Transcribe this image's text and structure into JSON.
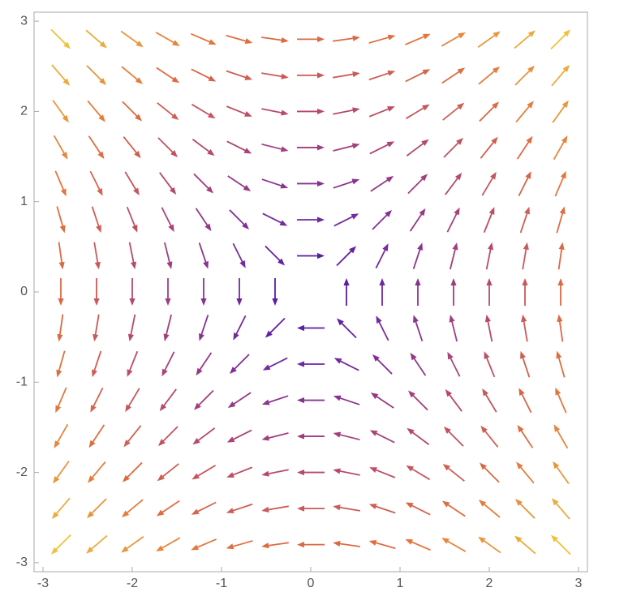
{
  "chart_data": {
    "type": "vector_field",
    "x": [
      -2.8,
      -2.4,
      -2,
      -1.6,
      -1.2,
      -0.8,
      -0.4,
      0,
      0.4,
      0.8,
      1.2,
      1.6,
      2,
      2.4,
      2.8
    ],
    "y": [
      -2.8,
      -2.4,
      -2,
      -1.6,
      -1.2,
      -0.8,
      -0.4,
      0,
      0.4,
      0.8,
      1.2,
      1.6,
      2,
      2.4,
      2.8
    ],
    "u": [
      [
        -2.8,
        -2.8,
        -2.8,
        -2.8,
        -2.8,
        -2.8,
        -2.8,
        -2.8,
        -2.8,
        -2.8,
        -2.8,
        -2.8,
        -2.8,
        -2.8,
        -2.8
      ],
      [
        -2.4,
        -2.4,
        -2.4,
        -2.4,
        -2.4,
        -2.4,
        -2.4,
        -2.4,
        -2.4,
        -2.4,
        -2.4,
        -2.4,
        -2.4,
        -2.4,
        -2.4
      ],
      [
        -2,
        -2,
        -2,
        -2,
        -2,
        -2,
        -2,
        -2,
        -2,
        -2,
        -2,
        -2,
        -2,
        -2,
        -2
      ],
      [
        -1.6,
        -1.6,
        -1.6,
        -1.6,
        -1.6,
        -1.6,
        -1.6,
        -1.6,
        -1.6,
        -1.6,
        -1.6,
        -1.6,
        -1.6,
        -1.6,
        -1.6
      ],
      [
        -1.2,
        -1.2,
        -1.2,
        -1.2,
        -1.2,
        -1.2,
        -1.2,
        -1.2,
        -1.2,
        -1.2,
        -1.2,
        -1.2,
        -1.2,
        -1.2,
        -1.2
      ],
      [
        -0.8,
        -0.8,
        -0.8,
        -0.8,
        -0.8,
        -0.8,
        -0.8,
        -0.8,
        -0.8,
        -0.8,
        -0.8,
        -0.8,
        -0.8,
        -0.8,
        -0.8
      ],
      [
        -0.4,
        -0.4,
        -0.4,
        -0.4,
        -0.4,
        -0.4,
        -0.4,
        -0.4,
        -0.4,
        -0.4,
        -0.4,
        -0.4,
        -0.4,
        -0.4,
        -0.4
      ],
      [
        0,
        0,
        0,
        0,
        0,
        0,
        0,
        0,
        0,
        0,
        0,
        0,
        0,
        0,
        0
      ],
      [
        0.4,
        0.4,
        0.4,
        0.4,
        0.4,
        0.4,
        0.4,
        0.4,
        0.4,
        0.4,
        0.4,
        0.4,
        0.4,
        0.4,
        0.4
      ],
      [
        0.8,
        0.8,
        0.8,
        0.8,
        0.8,
        0.8,
        0.8,
        0.8,
        0.8,
        0.8,
        0.8,
        0.8,
        0.8,
        0.8,
        0.8
      ],
      [
        1.2,
        1.2,
        1.2,
        1.2,
        1.2,
        1.2,
        1.2,
        1.2,
        1.2,
        1.2,
        1.2,
        1.2,
        1.2,
        1.2,
        1.2
      ],
      [
        1.6,
        1.6,
        1.6,
        1.6,
        1.6,
        1.6,
        1.6,
        1.6,
        1.6,
        1.6,
        1.6,
        1.6,
        1.6,
        1.6,
        1.6
      ],
      [
        2,
        2,
        2,
        2,
        2,
        2,
        2,
        2,
        2,
        2,
        2,
        2,
        2,
        2,
        2
      ],
      [
        2.4,
        2.4,
        2.4,
        2.4,
        2.4,
        2.4,
        2.4,
        2.4,
        2.4,
        2.4,
        2.4,
        2.4,
        2.4,
        2.4,
        2.4
      ],
      [
        2.8,
        2.8,
        2.8,
        2.8,
        2.8,
        2.8,
        2.8,
        2.8,
        2.8,
        2.8,
        2.8,
        2.8,
        2.8,
        2.8,
        2.8
      ]
    ],
    "v": [
      [
        -2.8,
        -2.4,
        -2,
        -1.6,
        -1.2,
        -0.8,
        -0.4,
        0,
        0.4,
        0.8,
        1.2,
        1.6,
        2,
        2.4,
        2.8
      ],
      [
        -2.8,
        -2.4,
        -2,
        -1.6,
        -1.2,
        -0.8,
        -0.4,
        0,
        0.4,
        0.8,
        1.2,
        1.6,
        2,
        2.4,
        2.8
      ],
      [
        -2.8,
        -2.4,
        -2,
        -1.6,
        -1.2,
        -0.8,
        -0.4,
        0,
        0.4,
        0.8,
        1.2,
        1.6,
        2,
        2.4,
        2.8
      ],
      [
        -2.8,
        -2.4,
        -2,
        -1.6,
        -1.2,
        -0.8,
        -0.4,
        0,
        0.4,
        0.8,
        1.2,
        1.6,
        2,
        2.4,
        2.8
      ],
      [
        -2.8,
        -2.4,
        -2,
        -1.6,
        -1.2,
        -0.8,
        -0.4,
        0,
        0.4,
        0.8,
        1.2,
        1.6,
        2,
        2.4,
        2.8
      ],
      [
        -2.8,
        -2.4,
        -2,
        -1.6,
        -1.2,
        -0.8,
        -0.4,
        0,
        0.4,
        0.8,
        1.2,
        1.6,
        2,
        2.4,
        2.8
      ],
      [
        -2.8,
        -2.4,
        -2,
        -1.6,
        -1.2,
        -0.8,
        -0.4,
        0,
        0.4,
        0.8,
        1.2,
        1.6,
        2,
        2.4,
        2.8
      ],
      [
        -2.8,
        -2.4,
        -2,
        -1.6,
        -1.2,
        -0.8,
        -0.4,
        0,
        0.4,
        0.8,
        1.2,
        1.6,
        2,
        2.4,
        2.8
      ],
      [
        -2.8,
        -2.4,
        -2,
        -1.6,
        -1.2,
        -0.8,
        -0.4,
        0,
        0.4,
        0.8,
        1.2,
        1.6,
        2,
        2.4,
        2.8
      ],
      [
        -2.8,
        -2.4,
        -2,
        -1.6,
        -1.2,
        -0.8,
        -0.4,
        0,
        0.4,
        0.8,
        1.2,
        1.6,
        2,
        2.4,
        2.8
      ],
      [
        -2.8,
        -2.4,
        -2,
        -1.6,
        -1.2,
        -0.8,
        -0.4,
        0,
        0.4,
        0.8,
        1.2,
        1.6,
        2,
        2.4,
        2.8
      ],
      [
        -2.8,
        -2.4,
        -2,
        -1.6,
        -1.2,
        -0.8,
        -0.4,
        0,
        0.4,
        0.8,
        1.2,
        1.6,
        2,
        2.4,
        2.8
      ],
      [
        -2.8,
        -2.4,
        -2,
        -1.6,
        -1.2,
        -0.8,
        -0.4,
        0,
        0.4,
        0.8,
        1.2,
        1.6,
        2,
        2.4,
        2.8
      ],
      [
        -2.8,
        -2.4,
        -2,
        -1.6,
        -1.2,
        -0.8,
        -0.4,
        0,
        0.4,
        0.8,
        1.2,
        1.6,
        2,
        2.4,
        2.8
      ],
      [
        -2.8,
        -2.4,
        -2,
        -1.6,
        -1.2,
        -0.8,
        -0.4,
        0,
        0.4,
        0.8,
        1.2,
        1.6,
        2,
        2.4,
        2.8
      ]
    ],
    "colormap": [
      "#4413a8",
      "#7a2c9c",
      "#b4486f",
      "#e2703c",
      "#f0c23c"
    ],
    "xlim": [
      -3.1,
      3.1
    ],
    "ylim": [
      -3.1,
      3.1
    ],
    "xticks": [
      -3,
      -2,
      -1,
      0,
      1,
      2,
      3
    ],
    "yticks": [
      -3,
      -2,
      -1,
      0,
      1,
      2,
      3
    ]
  }
}
